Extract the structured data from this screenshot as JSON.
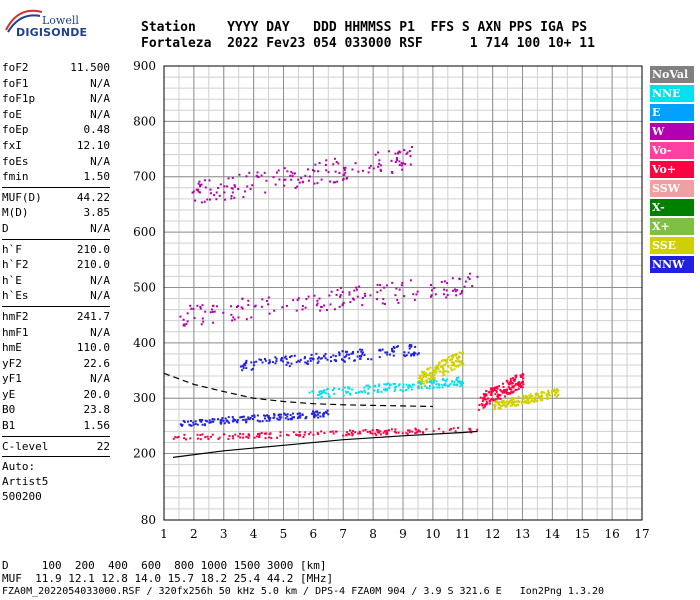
{
  "logo": {
    "line1": "Lowell",
    "line2": "DIGISONDE"
  },
  "header": {
    "line1": "Station    YYYY DAY   DDD HHMMSS P1  FFS S AXN PPS IGA PS",
    "line2": "Fortaleza  2022 Fev23 054 033000 RSF      1 714 100 10+ 11"
  },
  "params": {
    "group1": [
      {
        "label": "foF2",
        "value": "11.500"
      },
      {
        "label": "foF1",
        "value": "N/A"
      },
      {
        "label": "foF1p",
        "value": "N/A"
      },
      {
        "label": "foE",
        "value": "N/A"
      },
      {
        "label": "foEp",
        "value": "0.48"
      },
      {
        "label": "fxI",
        "value": "12.10"
      },
      {
        "label": "foEs",
        "value": "N/A"
      },
      {
        "label": "fmin",
        "value": "1.50"
      }
    ],
    "group2": [
      {
        "label": "MUF(D)",
        "value": "44.22"
      },
      {
        "label": "M(D)",
        "value": "3.85"
      },
      {
        "label": "D",
        "value": "N/A"
      }
    ],
    "group3": [
      {
        "label": "h`F",
        "value": "210.0"
      },
      {
        "label": "h`F2",
        "value": "210.0"
      },
      {
        "label": "h`E",
        "value": "N/A"
      },
      {
        "label": "h`Es",
        "value": "N/A"
      }
    ],
    "group4": [
      {
        "label": "hmF2",
        "value": "241.7"
      },
      {
        "label": "hmF1",
        "value": "N/A"
      },
      {
        "label": "hmE",
        "value": "110.0"
      },
      {
        "label": "yF2",
        "value": "22.6"
      },
      {
        "label": "yF1",
        "value": "N/A"
      },
      {
        "label": "yE",
        "value": "20.0"
      },
      {
        "label": "B0",
        "value": "23.8"
      },
      {
        "label": "B1",
        "value": "1.56"
      }
    ],
    "group5": [
      {
        "label": "C-level",
        "value": "22"
      }
    ],
    "auto": [
      "Auto:",
      "Artist5",
      "500200"
    ]
  },
  "legend": [
    {
      "label": "NoVal",
      "color": "#808080"
    },
    {
      "label": "NNE",
      "color": "#00e0f0"
    },
    {
      "label": "E",
      "color": "#00a0ff"
    },
    {
      "label": "W",
      "color": "#b000b0"
    },
    {
      "label": "Vo-",
      "color": "#ff40a0"
    },
    {
      "label": "Vo+",
      "color": "#ff0040"
    },
    {
      "label": "SSW",
      "color": "#f0a0a0"
    },
    {
      "label": "X-",
      "color": "#008000"
    },
    {
      "label": "X+",
      "color": "#80c040"
    },
    {
      "label": "SSE",
      "color": "#d0d000"
    },
    {
      "label": "NNW",
      "color": "#2020e0"
    }
  ],
  "footer": {
    "line1": "D     100  200  400  600  800 1000 1500 3000 [km]",
    "line2": "MUF  11.9 12.1 12.8 14.0 15.7 18.2 25.4 44.2 [MHz]",
    "line3": "FZA0M_2022054033000.RSF / 320fx256h 50 kHz 5.0 km / DPS-4 FZA0M 904 / 3.9 S 321.6 E   Ion2Png 1.3.20"
  },
  "chart_data": {
    "type": "scatter",
    "xlim": [
      1,
      17
    ],
    "ylim": [
      80,
      900
    ],
    "xticks": [
      1,
      2,
      3,
      4,
      5,
      6,
      7,
      8,
      9,
      10,
      11,
      12,
      13,
      14,
      15,
      16,
      17
    ],
    "yticks": [
      80,
      200,
      300,
      400,
      500,
      600,
      700,
      800,
      900
    ],
    "xlabel": "",
    "ylabel": "",
    "grid": true,
    "legend_position": "right",
    "traces": [
      {
        "series": "Vo+",
        "x_range": [
          1.2,
          11.5
        ],
        "y_range": [
          225,
          250
        ]
      },
      {
        "series": "NNW",
        "x_range": [
          1.5,
          6.5
        ],
        "y_range": [
          250,
          280
        ]
      },
      {
        "series": "W",
        "x_range": [
          1.5,
          11.5
        ],
        "y_range": [
          430,
          530
        ]
      },
      {
        "series": "W",
        "x_range": [
          1.9,
          9.5
        ],
        "y_range": [
          650,
          760
        ]
      },
      {
        "series": "Vo+",
        "x_range": [
          11.5,
          13.0
        ],
        "y_range": [
          280,
          350
        ]
      },
      {
        "series": "SSE",
        "x_range": [
          12.0,
          14.2
        ],
        "y_range": [
          280,
          320
        ]
      },
      {
        "series": "SSE",
        "x_range": [
          9.5,
          11.0
        ],
        "y_range": [
          320,
          390
        ]
      },
      {
        "series": "NNE",
        "x_range": [
          5.8,
          11.0
        ],
        "y_range": [
          300,
          340
        ]
      },
      {
        "series": "NNW",
        "x_range": [
          3.5,
          9.5
        ],
        "y_range": [
          350,
          400
        ]
      }
    ],
    "fitted_curves": [
      {
        "name": "trace_fit",
        "style": "solid",
        "points": [
          [
            1.3,
            193
          ],
          [
            3,
            205
          ],
          [
            5,
            215
          ],
          [
            7,
            225
          ],
          [
            9,
            232
          ],
          [
            11,
            238
          ],
          [
            11.5,
            240
          ]
        ]
      },
      {
        "name": "profile_fit",
        "style": "dashed",
        "points": [
          [
            1.0,
            345
          ],
          [
            2,
            325
          ],
          [
            3,
            312
          ],
          [
            4,
            300
          ],
          [
            5,
            294
          ],
          [
            6,
            290
          ],
          [
            7,
            288
          ],
          [
            8,
            287
          ],
          [
            9,
            286
          ],
          [
            10,
            285
          ]
        ]
      }
    ]
  }
}
